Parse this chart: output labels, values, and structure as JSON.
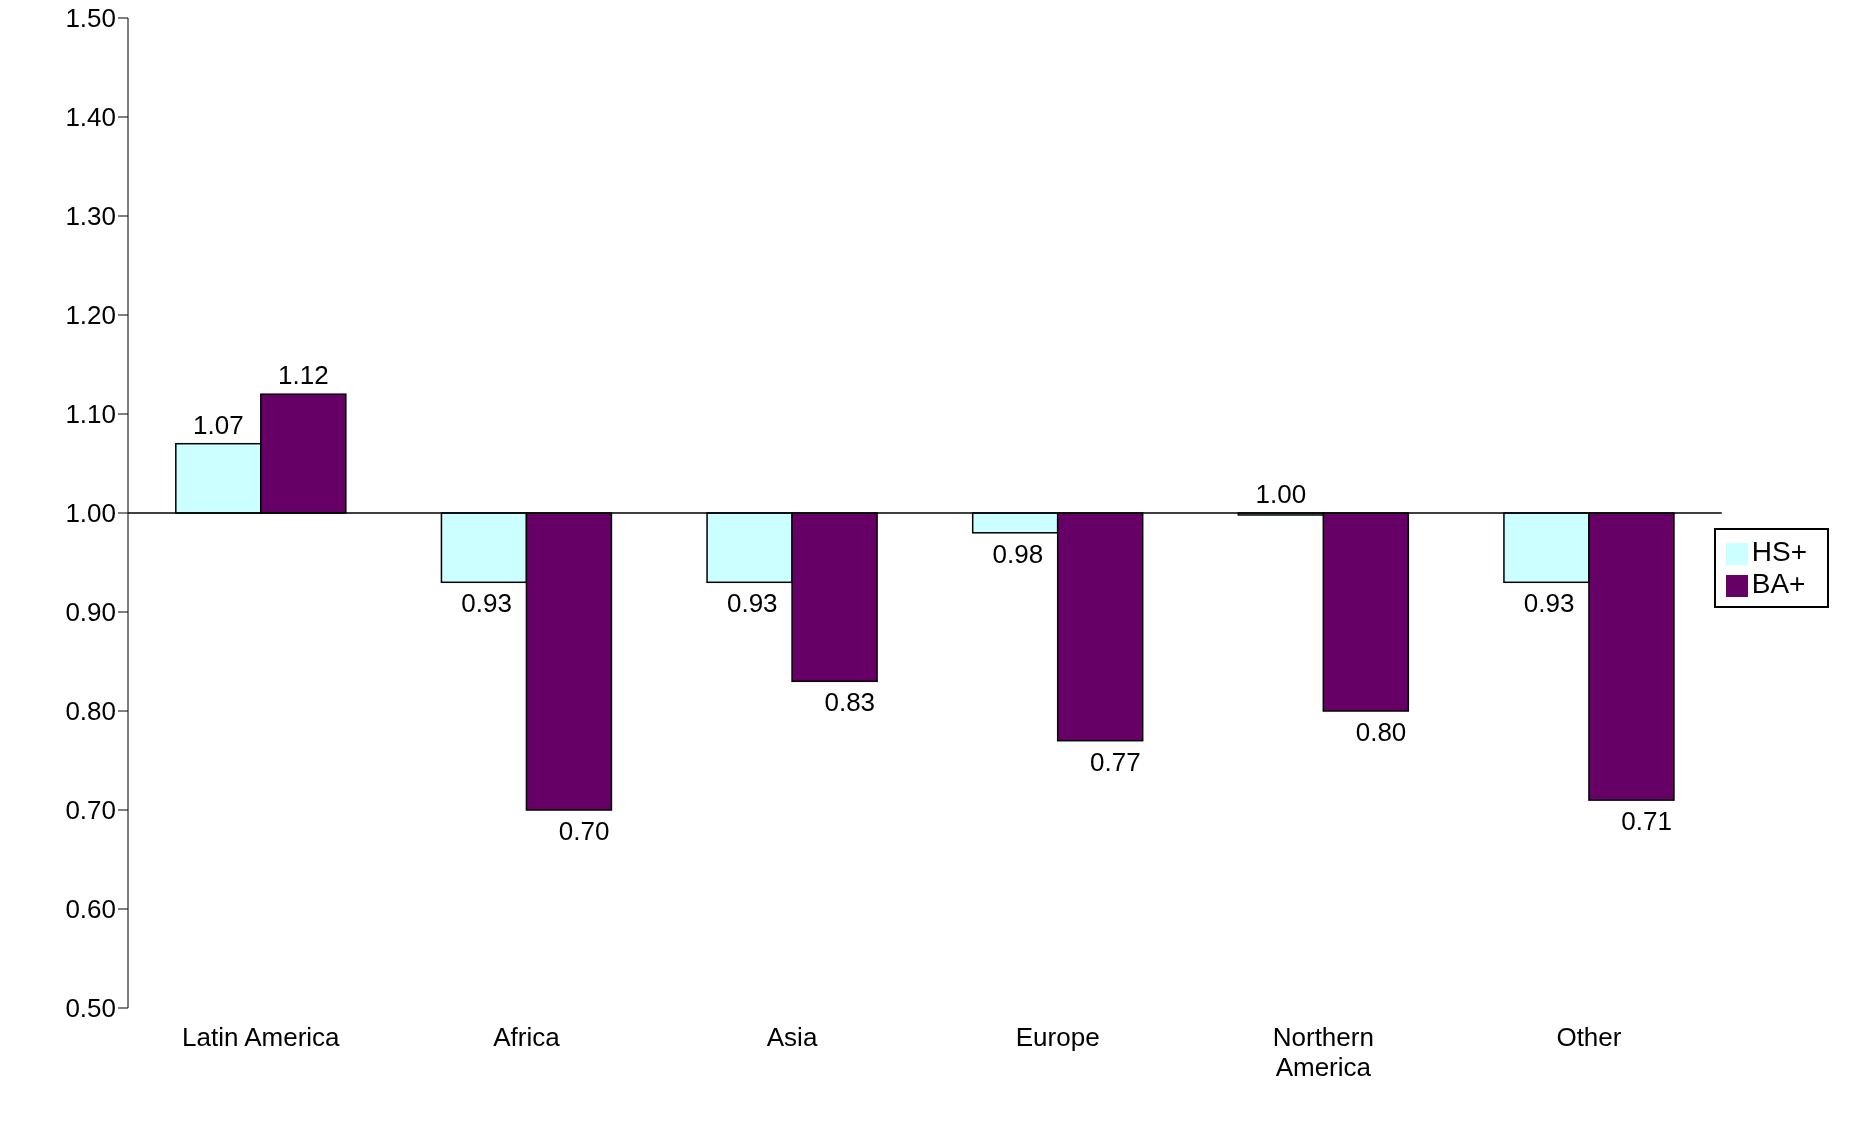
{
  "chart_data": {
    "type": "bar",
    "categories": [
      "Latin America",
      "Africa",
      "Asia",
      "Europe",
      "Northern America",
      "Other"
    ],
    "series": [
      {
        "name": "HS+",
        "color": "#ccffff",
        "base": [
          1,
          1,
          1,
          1,
          1,
          1
        ],
        "values": [
          0.07,
          -0.07,
          -0.07,
          -0.02,
          -0.002,
          -0.07
        ],
        "value_labels": [
          "1.07",
          "0.93",
          "0.93",
          "0.98",
          "1.00",
          "0.93"
        ]
      },
      {
        "name": "BA+",
        "color": "#660066",
        "base": [
          1,
          1,
          1,
          1,
          1,
          1
        ],
        "values": [
          0.12,
          -0.3,
          -0.17,
          -0.23,
          -0.2,
          -0.29
        ],
        "value_labels": [
          "1.12",
          "0.70",
          "0.83",
          "0.77",
          "0.80",
          "0.71"
        ]
      }
    ],
    "ylim": [
      0.5,
      1.5
    ],
    "yticks": [
      {
        "value": 0.5,
        "label": "0.50"
      },
      {
        "value": 0.6,
        "label": "0.60"
      },
      {
        "value": 0.7,
        "label": "0.70"
      },
      {
        "value": 0.8,
        "label": "0.80"
      },
      {
        "value": 0.9,
        "label": "0.90"
      },
      {
        "value": 1.0,
        "label": "1.00"
      },
      {
        "value": 1.1,
        "label": "1.10"
      },
      {
        "value": 1.2,
        "label": "1.20"
      },
      {
        "value": 1.3,
        "label": "1.30"
      },
      {
        "value": 1.4,
        "label": "1.40"
      },
      {
        "value": 1.5,
        "label": "1.50"
      }
    ],
    "legend": "right",
    "ref_lines": [
      {
        "axis": "y",
        "value": 1.0,
        "color": "#000000"
      }
    ],
    "grid": false
  }
}
